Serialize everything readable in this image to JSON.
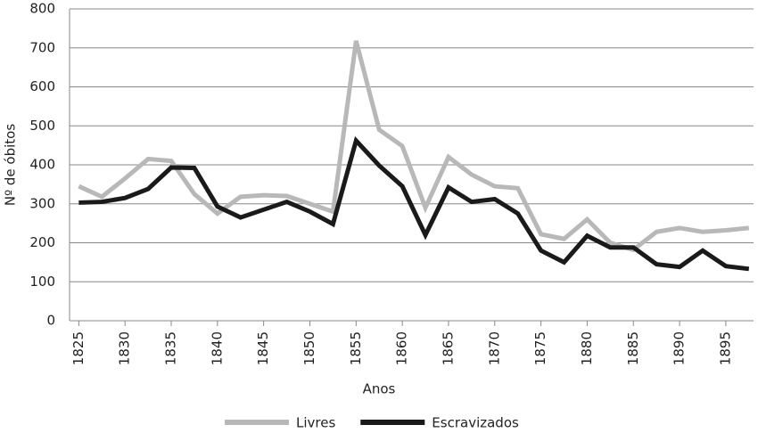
{
  "chart_data": {
    "type": "line",
    "xlabel": "Anos",
    "ylabel": "Nº de óbitos",
    "x": [
      1825,
      1827.5,
      1830,
      1832.5,
      1835,
      1837.5,
      1840,
      1842.5,
      1845,
      1847.5,
      1850,
      1852.5,
      1855,
      1857.5,
      1860,
      1862.5,
      1865,
      1867.5,
      1870,
      1872.5,
      1875,
      1877.5,
      1880,
      1882.5,
      1885,
      1887.5,
      1890,
      1892.5,
      1895,
      1897.5
    ],
    "series": [
      {
        "name": "Livres",
        "color": "#b8b8b8",
        "values": [
          345,
          318,
          365,
          415,
          410,
          325,
          275,
          318,
          322,
          320,
          300,
          280,
          718,
          490,
          448,
          290,
          420,
          375,
          345,
          340,
          222,
          210,
          260,
          200,
          182,
          228,
          238,
          228,
          232,
          238
        ]
      },
      {
        "name": "Escravizados",
        "color": "#1a1a1a",
        "values": [
          303,
          305,
          315,
          338,
          393,
          392,
          293,
          265,
          285,
          305,
          280,
          248,
          462,
          398,
          345,
          220,
          342,
          305,
          312,
          275,
          180,
          150,
          218,
          188,
          188,
          145,
          138,
          180,
          140,
          133
        ]
      }
    ],
    "xlim": [
      1824,
      1898
    ],
    "xticks": [
      1825,
      1830,
      1835,
      1840,
      1845,
      1850,
      1855,
      1860,
      1865,
      1870,
      1875,
      1880,
      1885,
      1890,
      1895
    ],
    "ylim": [
      0,
      800
    ],
    "yticks": [
      0,
      100,
      200,
      300,
      400,
      500,
      600,
      700,
      800
    ],
    "grid": true,
    "legend": "bottom"
  }
}
